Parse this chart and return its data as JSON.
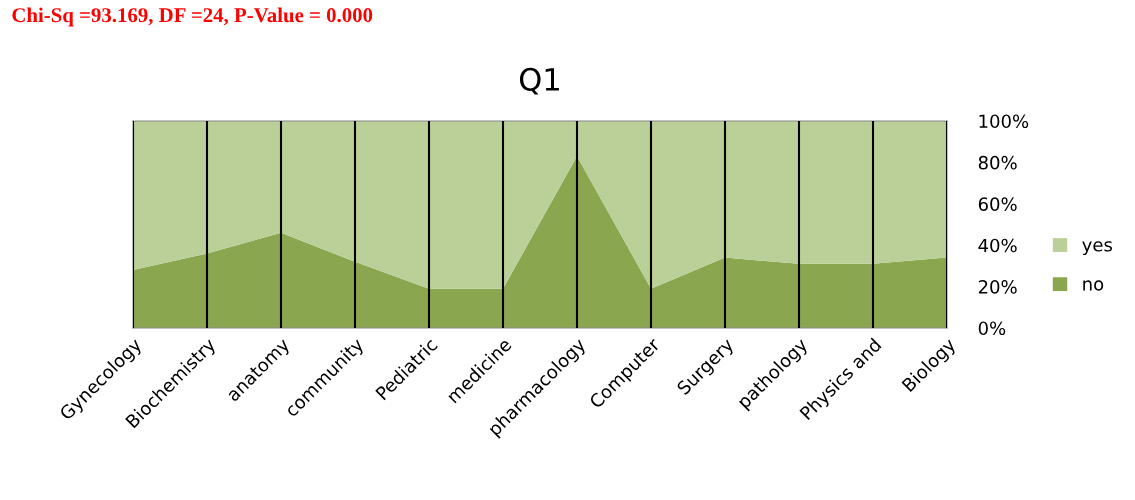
{
  "chart_data": {
    "type": "area",
    "stacked": true,
    "title": "Q1",
    "annotations": [
      "Chi-Sq =93.169, DF =24, P-Value = 0.000"
    ],
    "categories": [
      "Gynecology",
      "Biochemistry",
      "anatomy",
      "community",
      "Pediatric",
      "medicine",
      "pharmacology",
      "Computer",
      "Surgery",
      "pathology",
      "Physics and",
      "Biology"
    ],
    "series": [
      {
        "name": "no",
        "color": "#8aa64f",
        "values": [
          28,
          36,
          46,
          32,
          19,
          19,
          83,
          19,
          34,
          31,
          31,
          34
        ]
      },
      {
        "name": "yes",
        "color": "#bbcf98",
        "values": [
          72,
          64,
          54,
          68,
          81,
          81,
          17,
          81,
          66,
          69,
          69,
          66
        ]
      }
    ],
    "ylim": [
      0,
      100
    ],
    "yticks": [
      {
        "value": 0,
        "label": "0%"
      },
      {
        "value": 20,
        "label": "20%"
      },
      {
        "value": 40,
        "label": "40%"
      },
      {
        "value": 60,
        "label": "60%"
      },
      {
        "value": 80,
        "label": "80%"
      },
      {
        "value": 100,
        "label": "100%"
      }
    ],
    "grid": "x",
    "legend": "right"
  }
}
